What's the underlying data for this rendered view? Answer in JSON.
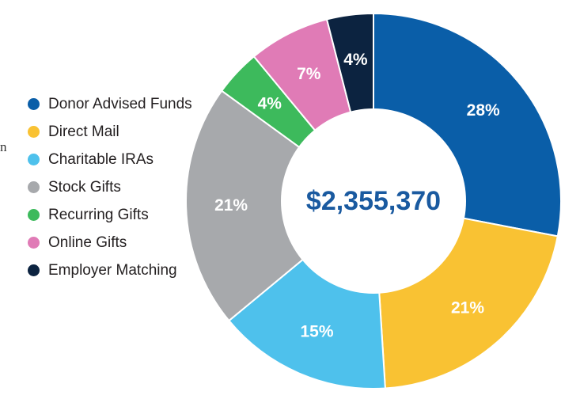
{
  "page": {
    "edge_text": "n"
  },
  "chart_data": {
    "type": "pie",
    "variant": "donut",
    "total_label": "$2,355,370",
    "legend_position": "left",
    "slices": [
      {
        "name": "Donor Advised Funds",
        "value": 28,
        "label": "28%",
        "color": "#0a5ea8"
      },
      {
        "name": "Direct Mail",
        "value": 21,
        "label": "21%",
        "color": "#f9c233"
      },
      {
        "name": "Charitable IRAs",
        "value": 15,
        "label": "15%",
        "color": "#4ec1ec"
      },
      {
        "name": "Stock Gifts",
        "value": 21,
        "label": "21%",
        "color": "#a7a9ac"
      },
      {
        "name": "Recurring Gifts",
        "value": 4,
        "label": "4%",
        "color": "#3dba5c"
      },
      {
        "name": "Online Gifts",
        "value": 7,
        "label": "7%",
        "color": "#e07bb6"
      },
      {
        "name": "Employer Matching",
        "value": 4,
        "label": "4%",
        "color": "#0c2340"
      }
    ]
  }
}
